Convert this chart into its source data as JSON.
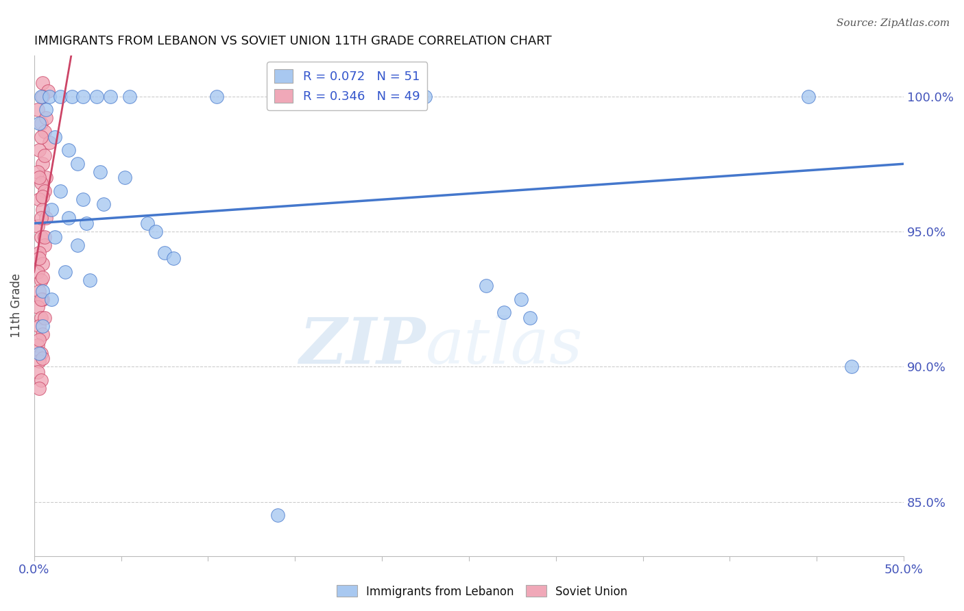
{
  "title": "IMMIGRANTS FROM LEBANON VS SOVIET UNION 11TH GRADE CORRELATION CHART",
  "source": "Source: ZipAtlas.com",
  "ylabel": "11th Grade",
  "xlim": [
    0.0,
    50.0
  ],
  "ylim": [
    83.0,
    101.5
  ],
  "yticks": [
    85.0,
    90.0,
    95.0,
    100.0
  ],
  "xticks": [
    0.0,
    5.0,
    10.0,
    15.0,
    20.0,
    25.0,
    30.0,
    35.0,
    40.0,
    45.0,
    50.0
  ],
  "legend_R_blue": "R = 0.072",
  "legend_N_blue": "N = 51",
  "legend_R_pink": "R = 0.346",
  "legend_N_pink": "N = 49",
  "blue_color": "#A8C8F0",
  "pink_color": "#F0A8B8",
  "trend_blue_color": "#4477CC",
  "trend_pink_color": "#CC4466",
  "blue_scatter": [
    [
      0.4,
      100.0
    ],
    [
      0.9,
      100.0
    ],
    [
      1.5,
      100.0
    ],
    [
      2.2,
      100.0
    ],
    [
      2.8,
      100.0
    ],
    [
      3.6,
      100.0
    ],
    [
      4.4,
      100.0
    ],
    [
      5.5,
      100.0
    ],
    [
      10.5,
      100.0
    ],
    [
      22.5,
      100.0
    ],
    [
      44.5,
      100.0
    ],
    [
      1.2,
      98.5
    ],
    [
      2.0,
      98.0
    ],
    [
      2.5,
      97.5
    ],
    [
      3.8,
      97.2
    ],
    [
      5.2,
      97.0
    ],
    [
      1.5,
      96.5
    ],
    [
      2.8,
      96.2
    ],
    [
      4.0,
      96.0
    ],
    [
      1.0,
      95.8
    ],
    [
      2.0,
      95.5
    ],
    [
      3.0,
      95.3
    ],
    [
      1.2,
      94.8
    ],
    [
      2.5,
      94.5
    ],
    [
      6.5,
      95.3
    ],
    [
      7.0,
      95.0
    ],
    [
      7.5,
      94.2
    ],
    [
      8.0,
      94.0
    ],
    [
      1.8,
      93.5
    ],
    [
      3.2,
      93.2
    ],
    [
      0.5,
      92.8
    ],
    [
      1.0,
      92.5
    ],
    [
      26.0,
      93.0
    ],
    [
      28.0,
      92.5
    ],
    [
      27.0,
      92.0
    ],
    [
      28.5,
      91.8
    ],
    [
      0.5,
      91.5
    ],
    [
      0.3,
      90.5
    ],
    [
      14.0,
      84.5
    ],
    [
      47.0,
      90.0
    ],
    [
      0.7,
      99.5
    ],
    [
      0.3,
      99.0
    ]
  ],
  "pink_scatter": [
    [
      0.5,
      100.5
    ],
    [
      0.8,
      100.2
    ],
    [
      0.2,
      99.5
    ],
    [
      0.4,
      99.0
    ],
    [
      0.6,
      98.7
    ],
    [
      0.9,
      98.3
    ],
    [
      0.3,
      98.0
    ],
    [
      0.5,
      97.5
    ],
    [
      0.7,
      97.0
    ],
    [
      0.2,
      97.2
    ],
    [
      0.4,
      96.8
    ],
    [
      0.6,
      96.5
    ],
    [
      0.3,
      96.2
    ],
    [
      0.5,
      95.8
    ],
    [
      0.7,
      95.5
    ],
    [
      0.2,
      95.2
    ],
    [
      0.4,
      94.8
    ],
    [
      0.6,
      94.5
    ],
    [
      0.3,
      94.2
    ],
    [
      0.5,
      93.8
    ],
    [
      0.2,
      93.5
    ],
    [
      0.4,
      93.2
    ],
    [
      0.3,
      92.8
    ],
    [
      0.5,
      92.5
    ],
    [
      0.2,
      92.2
    ],
    [
      0.4,
      91.8
    ],
    [
      0.3,
      91.5
    ],
    [
      0.5,
      91.2
    ],
    [
      0.2,
      90.8
    ],
    [
      0.4,
      90.5
    ],
    [
      0.3,
      90.2
    ],
    [
      0.2,
      89.8
    ],
    [
      0.4,
      89.5
    ],
    [
      0.3,
      89.2
    ],
    [
      0.5,
      100.0
    ],
    [
      0.7,
      99.2
    ],
    [
      0.4,
      98.5
    ],
    [
      0.6,
      97.8
    ],
    [
      0.3,
      97.0
    ],
    [
      0.5,
      96.3
    ],
    [
      0.4,
      95.5
    ],
    [
      0.6,
      94.8
    ],
    [
      0.3,
      94.0
    ],
    [
      0.5,
      93.3
    ],
    [
      0.4,
      92.5
    ],
    [
      0.6,
      91.8
    ],
    [
      0.3,
      91.0
    ],
    [
      0.5,
      90.3
    ]
  ],
  "blue_trend": [
    0.0,
    50.0,
    95.3,
    97.5
  ],
  "pink_trend": [
    0.0,
    2.0,
    93.5,
    101.0
  ],
  "watermark_zip": "ZIP",
  "watermark_atlas": "atlas",
  "background_color": "#FFFFFF",
  "grid_color": "#CCCCCC"
}
